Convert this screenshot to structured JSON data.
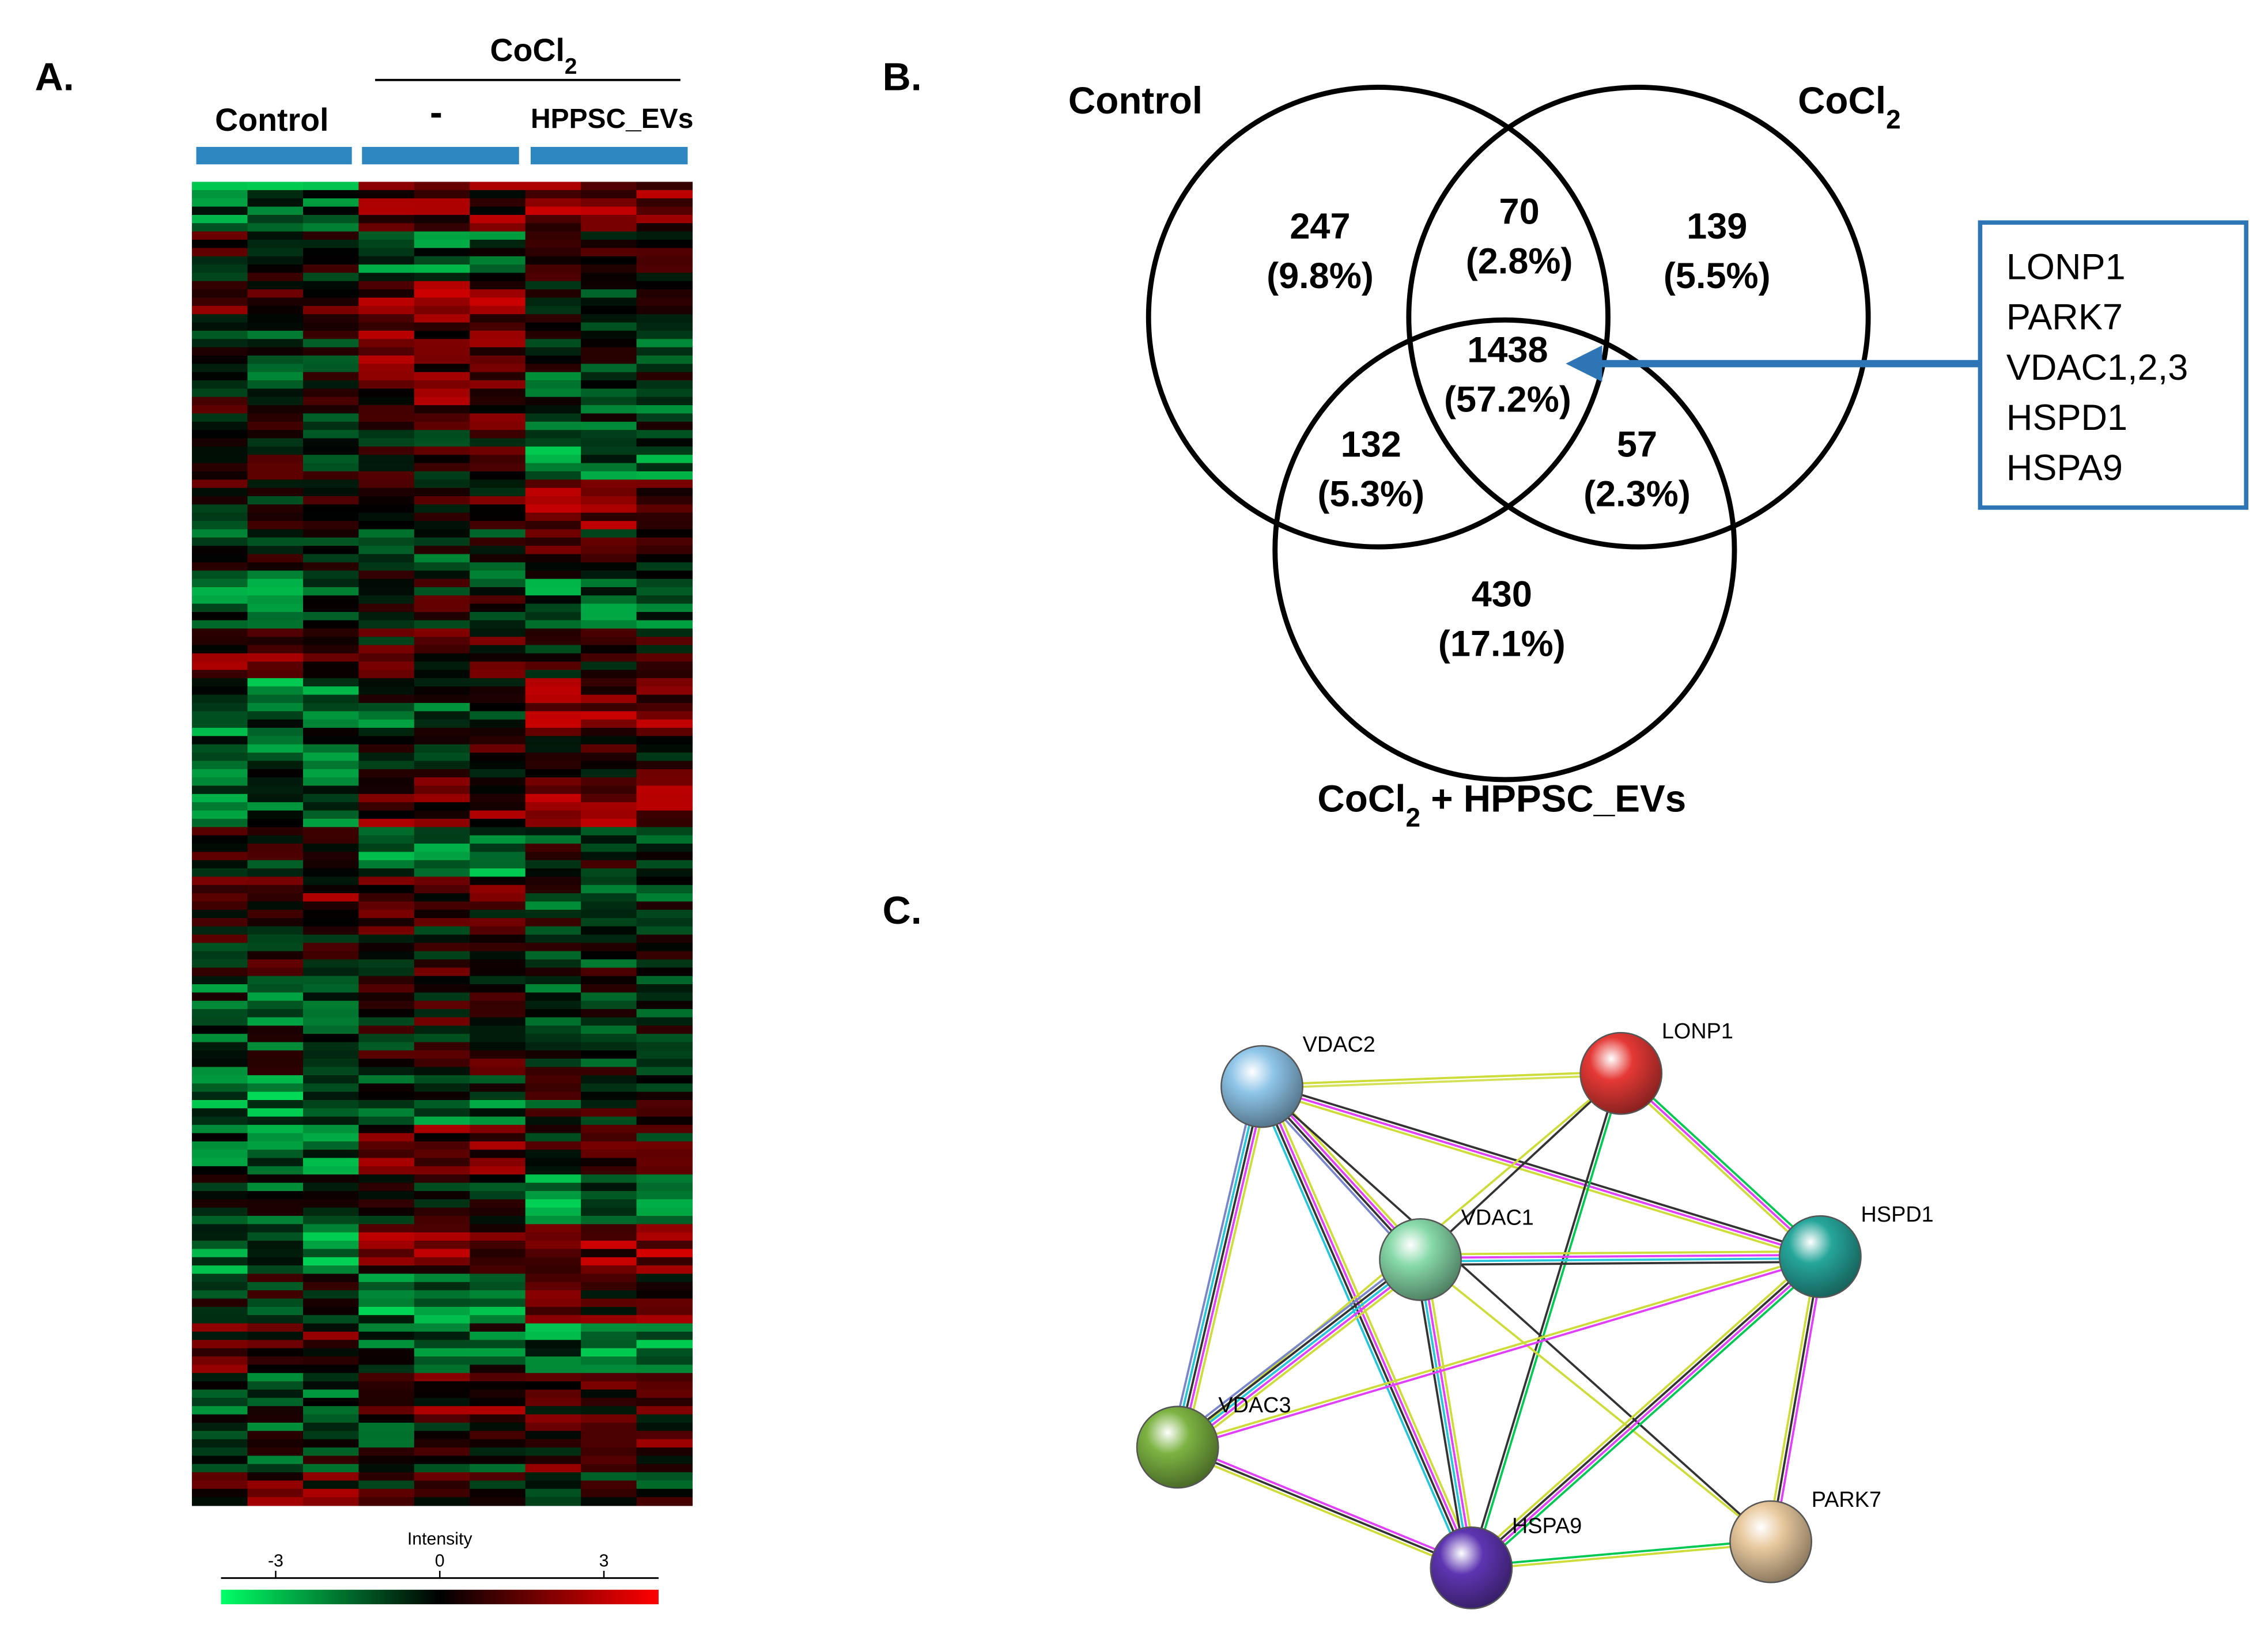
{
  "panels": {
    "a": "A.",
    "b": "B.",
    "c": "C."
  },
  "heatmap": {
    "control_label": "Control",
    "cocl2_label": [
      "CoCl",
      "2"
    ],
    "minus_label": "-",
    "evs_label": "HPPSC_EVs",
    "colorbar": {
      "title": "Intensity",
      "ticks": [
        -3,
        0,
        3
      ],
      "lim": [
        -4,
        4
      ],
      "colors": [
        "#00ff66",
        "#000000",
        "#ff0000"
      ]
    }
  },
  "venn": {
    "sets": [
      {
        "parts": [
          "Control"
        ]
      },
      {
        "parts": [
          "CoCl",
          "2"
        ]
      },
      {
        "parts": [
          "CoCl",
          "2",
          " + HPPSC_EVs"
        ]
      }
    ],
    "regions": [
      {
        "count": 247,
        "percent": "(9.8%)"
      },
      {
        "count": 70,
        "percent": "(2.8%)"
      },
      {
        "count": 139,
        "percent": "(5.5%)"
      },
      {
        "count": 1438,
        "percent": "(57.2%)"
      },
      {
        "count": 132,
        "percent": "(5.3%)"
      },
      {
        "count": 57,
        "percent": "(2.3%)"
      },
      {
        "count": 430,
        "percent": "(17.1%)"
      }
    ],
    "callout": [
      "LONP1",
      "PARK7",
      "VDAC1,2,3",
      "HSPD1",
      "HSPA9"
    ],
    "callout_color": "#2e75b6"
  },
  "network": {
    "nodes": [
      {
        "label": "VDAC2",
        "color": "#8ec5e8"
      },
      {
        "label": "LONP1",
        "color": "#e53935"
      },
      {
        "label": "VDAC1",
        "color": "#86d9a8"
      },
      {
        "label": "HSPD1",
        "color": "#26a69a"
      },
      {
        "label": "VDAC3",
        "color": "#7cb342"
      },
      {
        "label": "HSPA9",
        "color": "#5e35b1"
      },
      {
        "label": "PARK7",
        "color": "#e8c99e"
      }
    ],
    "edges": [
      {
        "pair": [
          0,
          1
        ],
        "colors": [
          "#cddc39",
          "#d4e157"
        ]
      },
      {
        "pair": [
          0,
          2
        ],
        "colors": [
          "#cddc39",
          "#e040fb",
          "#333333",
          "#7986cb"
        ]
      },
      {
        "pair": [
          0,
          3
        ],
        "colors": [
          "#333333",
          "#e040fb",
          "#cddc39"
        ]
      },
      {
        "pair": [
          0,
          4
        ],
        "colors": [
          "#cddc39",
          "#e040fb",
          "#333333",
          "#26c6da",
          "#7986cb"
        ]
      },
      {
        "pair": [
          0,
          5
        ],
        "colors": [
          "#cddc39",
          "#e040fb",
          "#333333",
          "#26c6da"
        ]
      },
      {
        "pair": [
          0,
          6
        ],
        "colors": [
          "#333333"
        ]
      },
      {
        "pair": [
          1,
          2
        ],
        "colors": [
          "#333333"
        ]
      },
      {
        "pair": [
          1,
          3
        ],
        "colors": [
          "#00c853",
          "#e040fb",
          "#cddc39"
        ]
      },
      {
        "pair": [
          1,
          5
        ],
        "colors": [
          "#00c853",
          "#333333"
        ]
      },
      {
        "pair": [
          1,
          4
        ],
        "colors": [
          "#cddc39"
        ]
      },
      {
        "pair": [
          2,
          3
        ],
        "colors": [
          "#cddc39",
          "#e040fb",
          "#26c6da",
          "#333333"
        ]
      },
      {
        "pair": [
          2,
          4
        ],
        "colors": [
          "#cddc39",
          "#e040fb",
          "#26c6da",
          "#333333",
          "#7986cb"
        ]
      },
      {
        "pair": [
          2,
          5
        ],
        "colors": [
          "#cddc39",
          "#e040fb",
          "#26c6da",
          "#333333"
        ]
      },
      {
        "pair": [
          2,
          6
        ],
        "colors": [
          "#cddc39"
        ]
      },
      {
        "pair": [
          3,
          4
        ],
        "colors": [
          "#e040fb",
          "#cddc39"
        ]
      },
      {
        "pair": [
          3,
          5
        ],
        "colors": [
          "#00c853",
          "#e040fb",
          "#333333",
          "#cddc39"
        ]
      },
      {
        "pair": [
          3,
          6
        ],
        "colors": [
          "#e040fb",
          "#333333",
          "#cddc39"
        ]
      },
      {
        "pair": [
          4,
          5
        ],
        "colors": [
          "#e040fb",
          "#333333",
          "#cddc39"
        ]
      },
      {
        "pair": [
          5,
          6
        ],
        "colors": [
          "#00c853",
          "#cddc39"
        ]
      }
    ]
  }
}
